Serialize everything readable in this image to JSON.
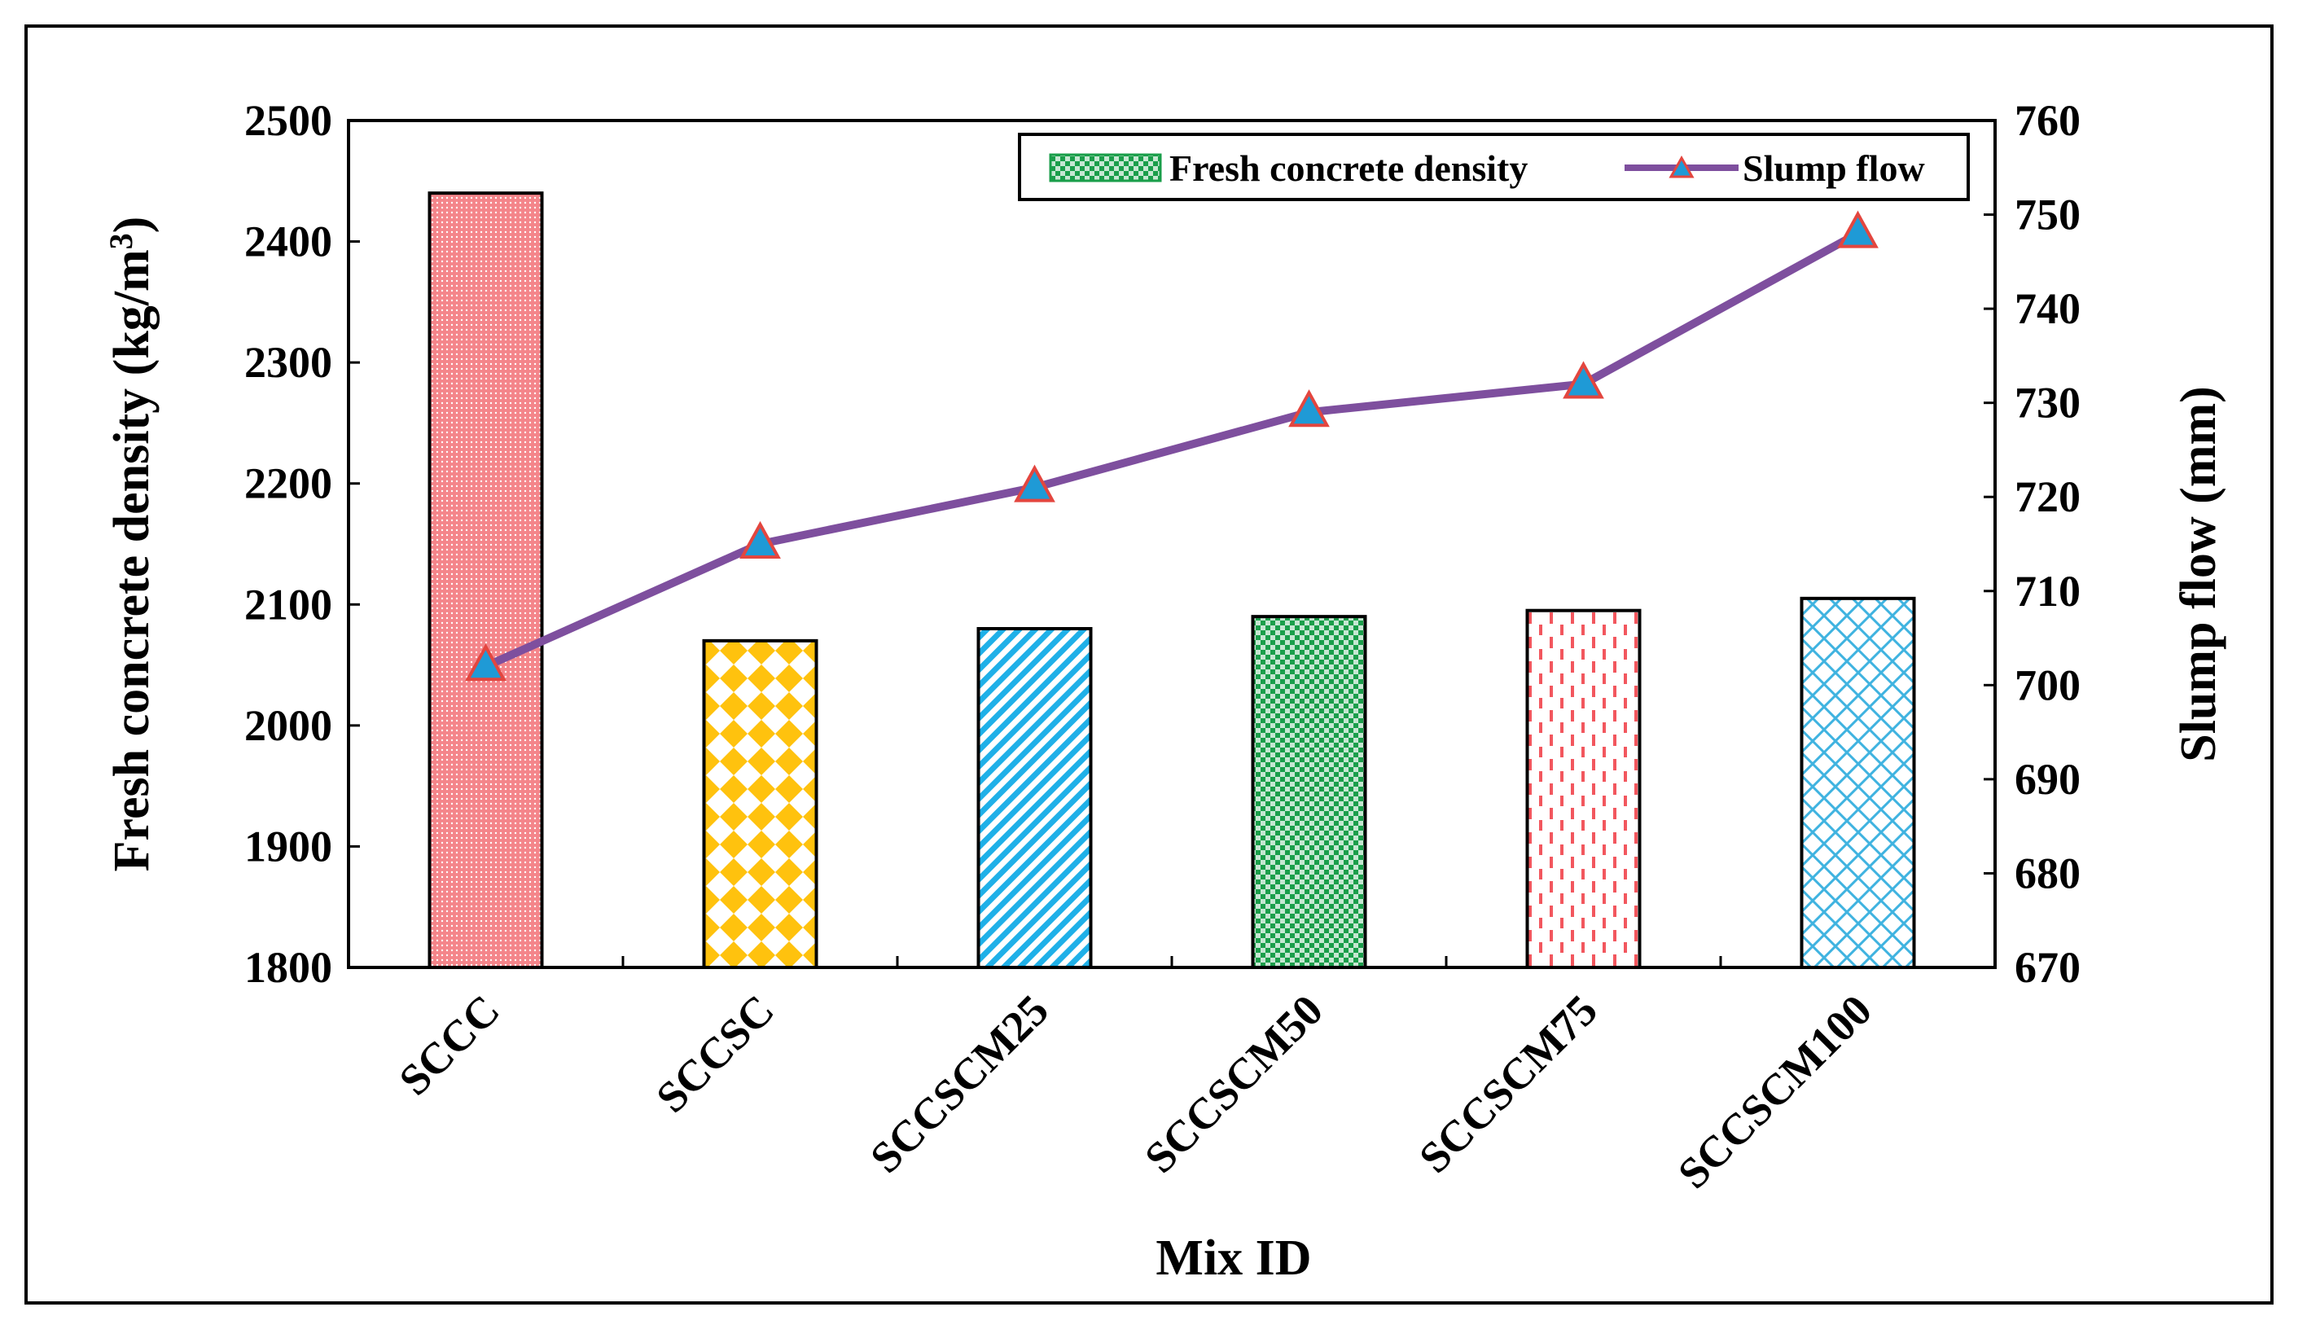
{
  "chart_data": {
    "type": "bar+line",
    "categories": [
      "SCCC",
      "SCCSC",
      "SCCSCM25",
      "SCCSCM50",
      "SCCSCM75",
      "SCCSCM100"
    ],
    "series": [
      {
        "name": "Fresh concrete density",
        "type": "bar",
        "axis": "left",
        "values": [
          2440,
          2070,
          2080,
          2090,
          2095,
          2105
        ],
        "colors": [
          "#f4858a",
          "#ffc20e",
          "#1fb0e8",
          "#1a9e4a",
          "#f2575e",
          "#3fb3e0"
        ]
      },
      {
        "name": "Slump flow",
        "type": "line",
        "axis": "right",
        "values": [
          702,
          715,
          721,
          729,
          732,
          748
        ],
        "line_color": "#7e4f9e",
        "marker_fill": "#1f9ad6",
        "marker_edge": "#e3463f"
      }
    ],
    "xlabel": "Mix ID",
    "ylabel_left": "Fresh concrete density (kg/m",
    "ylabel_left_sup": "3",
    "ylabel_left_close": ")",
    "ylabel_right": "Slump flow (mm)",
    "ylim_left": [
      1800,
      2500
    ],
    "yticks_left": [
      1800,
      1900,
      2000,
      2100,
      2200,
      2300,
      2400,
      2500
    ],
    "ylim_right": [
      670,
      760
    ],
    "yticks_right": [
      670,
      680,
      690,
      700,
      710,
      720,
      730,
      740,
      750,
      760
    ],
    "legend": [
      "Fresh concrete density",
      "Slump flow"
    ],
    "legend_position": "top-right",
    "grid": false
  }
}
